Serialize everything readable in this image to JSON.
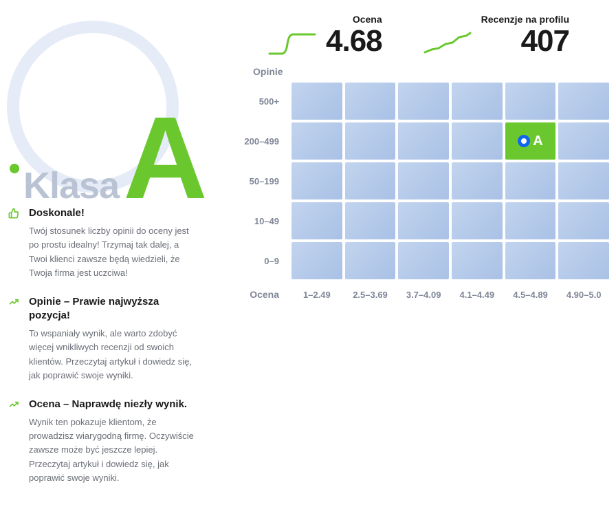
{
  "badge": {
    "label": "Klasa",
    "grade": "A",
    "accent_color": "#6ac82e",
    "label_color": "#b9c3d4",
    "circle_color": "#e6ecf7"
  },
  "insights": [
    {
      "icon": "thumbs-up",
      "title": "Doskonale!",
      "desc": "Twój stosunek liczby opinii do oceny jest po prostu idealny! Trzymaj tak dalej, a Twoi klienci zawsze będą wiedzieli, że Twoja firma jest uczciwa!"
    },
    {
      "icon": "trend-up",
      "title": "Opinie – Prawie najwyższa pozycja!",
      "desc": "To wspaniały wynik, ale warto zdobyć więcej wnikliwych recenzji od swoich klientów. Przeczytaj artykuł i dowiedz się, jak poprawić swoje wyniki."
    },
    {
      "icon": "trend-up",
      "title": "Ocena – Naprawdę niezły wynik.",
      "desc": "Wynik ten pokazuje klientom, że prowadzisz wiarygodną firmę. Oczywiście zawsze może być jeszcze lepiej. Przeczytaj artykuł i dowiedz się, jak poprawić swoje wyniki."
    }
  ],
  "metrics": {
    "score": {
      "label": "Ocena",
      "value": "4.68",
      "spark_type": "step"
    },
    "reviews": {
      "label": "Recenzje na profilu",
      "value": "407",
      "spark_type": "line"
    },
    "spark_color": "#6ac82e"
  },
  "heatmap": {
    "y_title": "Opinie",
    "x_title": "Ocena",
    "y_labels": [
      "500+",
      "200–499",
      "50–199",
      "10–49",
      "0–9"
    ],
    "x_labels": [
      "1–2.49",
      "2.5–3.69",
      "3.7–4.09",
      "4.1–4.49",
      "4.5–4.89",
      "4.90–5.0"
    ],
    "cell_color": "#b5c9e8",
    "active_color": "#6ac82e",
    "marker_ring_color": "#1166ee",
    "active": {
      "row": 1,
      "col": 4,
      "letter": "A"
    }
  }
}
